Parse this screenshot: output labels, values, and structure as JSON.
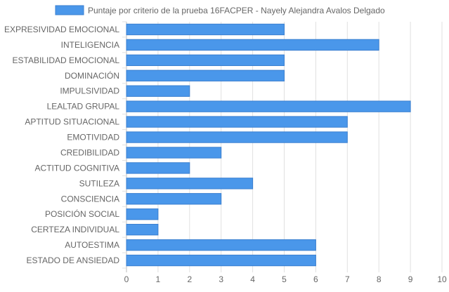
{
  "chart_data": {
    "type": "bar",
    "orientation": "horizontal",
    "categories": [
      "EXPRESIVIDAD EMOCIONAL",
      "INTELIGENCIA",
      "ESTABILIDAD EMOCIONAL",
      "DOMINACIÓN",
      "IMPULSIVIDAD",
      "LEALTAD GRUPAL",
      "APTITUD SITUACIONAL",
      "EMOTIVIDAD",
      "CREDIBILIDAD",
      "ACTITUD COGNITIVA",
      "SUTILEZA",
      "CONSCIENCIA",
      "POSICIÓN SOCIAL",
      "CERTEZA INDIVIDUAL",
      "AUTOESTIMA",
      "ESTADO DE ANSIEDAD"
    ],
    "series": [
      {
        "name": "Puntaje por criterio de la prueba 16FACPER - Nayely Alejandra Avalos Delgado",
        "values": [
          5,
          8,
          5,
          5,
          2,
          9,
          7,
          7,
          3,
          2,
          4,
          3,
          1,
          1,
          6,
          6
        ],
        "color": "#4a97ea",
        "border_color": "#3a7fd0"
      }
    ],
    "xlim": [
      0,
      10
    ],
    "x_ticks": [
      "0",
      "1",
      "2",
      "3",
      "4",
      "5",
      "6",
      "7",
      "8",
      "9",
      "10"
    ],
    "grid": true,
    "legend_position": "top"
  }
}
